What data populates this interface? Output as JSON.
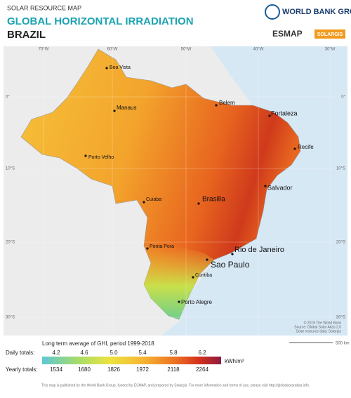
{
  "header": {
    "subtitle": "SOLAR RESOURCE MAP",
    "title": "GLOBAL HORIZONTAL IRRADIATION",
    "country": "BRAZIL"
  },
  "logos": {
    "world_bank": "WORLD BANK GROUP",
    "esmap": "ESMAP",
    "solargis": "SOLARGIS"
  },
  "map": {
    "longitudes": [
      "70°W",
      "60°W",
      "50°W",
      "40°W",
      "30°W"
    ],
    "latitudes": [
      "0°",
      "10°S",
      "20°S",
      "30°S"
    ],
    "cities": [
      "Boa Vista",
      "Manaus",
      "Belem",
      "Fortaleza",
      "Recife",
      "Porto Velho",
      "Salvador",
      "Cuiaba",
      "Brasilia",
      "Ponta Pora",
      "Rio de Janeiro",
      "Sao Paulo",
      "Curitiba",
      "Porto Alegre"
    ],
    "credits": [
      "© 2019 The World Bank",
      "Source: Global Solar Atlas 2.0",
      "Solar resource data: Solargis"
    ],
    "scale": "500 km"
  },
  "legend": {
    "title": "Long term average of GHI, period 1999-2018",
    "daily_label": "Daily totals:",
    "daily": [
      "4.2",
      "4.6",
      "5.0",
      "5.4",
      "5.8",
      "6.2"
    ],
    "yearly_label": "Yearly totals:",
    "yearly": [
      "1534",
      "1680",
      "1826",
      "1972",
      "2118",
      "2264"
    ],
    "unit": "kWh/m²"
  },
  "footer": "This map is published by the World Bank Group, funded by ESMAP, and prepared by Solargis. For more information and terms of use, please visit http://globalsolaratlas.info."
}
